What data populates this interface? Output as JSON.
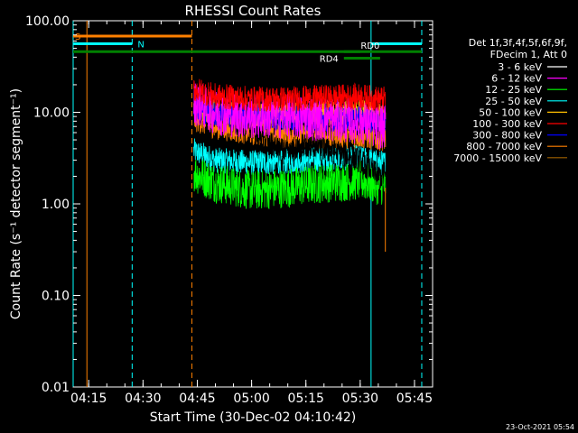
{
  "chart_data": {
    "type": "line",
    "title": "RHESSI Count Rates",
    "xlabel": "Start Time (30-Dec-02 04:10:42)",
    "ylabel": "Count Rate (s⁻¹ detector segment⁻¹)",
    "yscale": "log",
    "xlim": [
      "04:10:42",
      "05:50:00"
    ],
    "ylim": [
      0.01,
      100
    ],
    "x_ticks": [
      "04:15",
      "04:30",
      "04:45",
      "05:00",
      "05:15",
      "05:30",
      "05:45"
    ],
    "y_ticks": [
      "0.01",
      "0.10",
      "1.00",
      "10.00",
      "100.00"
    ],
    "data_interval": [
      "04:44",
      "05:37"
    ],
    "legend_header": [
      "Det 1f,3f,4f,5f,6f,9f,",
      "FDecim 1, Att 0"
    ],
    "series": [
      {
        "name": "3 - 6 keV",
        "color": "#000000",
        "x": [
          "04:44",
          "04:50",
          "05:00",
          "05:05",
          "05:10",
          "05:15",
          "05:20",
          "05:25",
          "05:30",
          "05:35"
        ],
        "y": [
          11,
          9,
          7,
          4.5,
          3.5,
          4.5,
          4.0,
          3.5,
          3.0,
          2.0
        ]
      },
      {
        "name": "6 - 12 keV",
        "color": "#ff00ff",
        "x": [
          "04:44",
          "04:50",
          "05:00",
          "05:10",
          "05:20",
          "05:30",
          "05:35"
        ],
        "y": [
          13,
          10,
          9,
          9,
          8.5,
          8,
          7
        ]
      },
      {
        "name": "12 - 25 keV",
        "color": "#00ff00",
        "x": [
          "04:44",
          "04:50",
          "05:00",
          "05:10",
          "05:20",
          "05:30",
          "05:35"
        ],
        "y": [
          2.2,
          1.7,
          1.4,
          1.5,
          1.7,
          1.8,
          1.6
        ]
      },
      {
        "name": "25 - 50 keV",
        "color": "#00ffff",
        "x": [
          "04:44",
          "04:50",
          "05:00",
          "05:10",
          "05:20",
          "05:30",
          "05:35"
        ],
        "y": [
          3.8,
          3.0,
          2.8,
          2.9,
          3.1,
          3.2,
          2.8
        ]
      },
      {
        "name": "50 - 100 keV",
        "color": "#ffbf00",
        "x": [
          "04:44",
          "04:50",
          "05:00",
          "05:10",
          "05:20",
          "05:30",
          "05:35"
        ],
        "y": [
          12,
          10,
          9.5,
          9.5,
          9.8,
          10,
          9
        ]
      },
      {
        "name": "100 - 300 keV",
        "color": "#ff0000",
        "x": [
          "04:44",
          "04:50",
          "05:00",
          "05:10",
          "05:20",
          "05:30",
          "05:35"
        ],
        "y": [
          18,
          15,
          14,
          14,
          14.5,
          15,
          14
        ]
      },
      {
        "name": "300 - 800 keV",
        "color": "#0000ff",
        "x": [
          "04:44",
          "04:50",
          "05:00",
          "05:10",
          "05:20",
          "05:30",
          "05:35"
        ],
        "y": [
          11,
          9.5,
          9,
          8.5,
          8.5,
          8.5,
          8
        ]
      },
      {
        "name": "800 - 7000 keV",
        "color": "#ff8000",
        "x": [
          "04:44",
          "04:50",
          "05:00",
          "05:10",
          "05:20",
          "05:30",
          "05:35"
        ],
        "y": [
          8.5,
          7,
          6,
          5.5,
          5.5,
          5.5,
          5.2
        ]
      },
      {
        "name": "7000 - 15000 keV",
        "color": "#a06000",
        "x": [
          "04:44",
          "05:36"
        ],
        "y": [
          null,
          null
        ]
      }
    ],
    "flag_bars": [
      {
        "label": "S",
        "color": "#ff8000",
        "x0": "04:10:42",
        "x1": "04:43:30",
        "y": 68
      },
      {
        "label": "N",
        "color": "#00ffff",
        "x0": "04:10:42",
        "x1": "04:27:00",
        "y": 56
      },
      {
        "label": "",
        "color": "#00ffff",
        "x0": "05:33:00",
        "x1": "05:47:00",
        "y": 56
      },
      {
        "label": "",
        "color": "#008000",
        "x0": "04:10:42",
        "x1": "05:47:00",
        "y": 46
      },
      {
        "label": "RD0",
        "color": "#008000",
        "x0": "05:25:30",
        "x1": "05:30:00",
        "y": 46
      },
      {
        "label": "RD4",
        "color": "#008000",
        "x0": "05:25:30",
        "x1": "05:35:30",
        "y": 39
      }
    ],
    "vlines": [
      {
        "x": "04:10:42",
        "color": "#00ffff",
        "style": "solid"
      },
      {
        "x": "04:14:30",
        "color": "#ff8000",
        "style": "solid"
      },
      {
        "x": "04:27:00",
        "color": "#00ffff",
        "style": "dashed"
      },
      {
        "x": "04:43:30",
        "color": "#ff8000",
        "style": "dashed"
      },
      {
        "x": "05:33:00",
        "color": "#00ffff",
        "style": "solid"
      },
      {
        "x": "05:47:00",
        "color": "#00ffff",
        "style": "dashed"
      }
    ],
    "footer_stamp": "23-Oct-2021 05:54"
  }
}
